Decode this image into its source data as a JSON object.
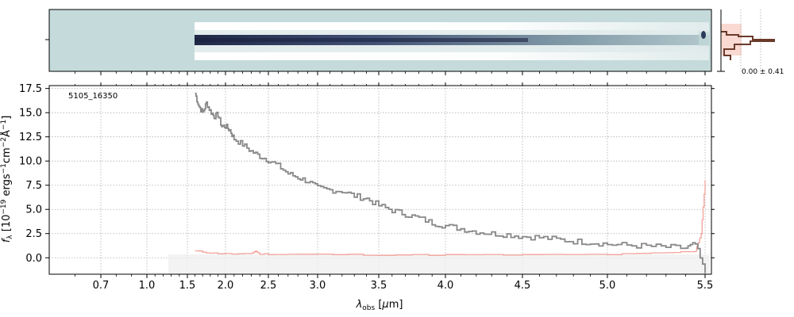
{
  "chart_data": [
    {
      "type": "heatmap",
      "panel": "2d-spectrum",
      "description_visible": "Dispersed 2D spectrum cutout; trace visible from about 1.6 to 5.5 µm",
      "colors": {
        "background": "#c5dada",
        "trace": "#2d3a5c",
        "bright_band": "#ffffff"
      }
    },
    {
      "type": "line",
      "panel": "profile",
      "annotation": "0.00 ± 0.41",
      "colors": {
        "profile": "#6b3a2a",
        "fill": "#f7c9bd"
      }
    },
    {
      "type": "line",
      "panel": "1d-spectrum",
      "label": "5105_16350",
      "xlabel": "λ_obs [μm]",
      "ylabel": "f_λ [10⁻¹⁹ ergs⁻¹cm⁻²Å⁻¹]",
      "ylim": [
        -1.7,
        17.8
      ],
      "x_ticks": [
        "0.7",
        "1.0",
        "1.5",
        "2.0",
        "2.5",
        "3.0",
        "3.5",
        "4.0",
        "4.5",
        "5.0",
        "5.5"
      ],
      "y_ticks": [
        "0.0",
        "2.5",
        "5.0",
        "7.5",
        "10.0",
        "12.5",
        "15.0",
        "17.5"
      ],
      "grid": true,
      "series": [
        {
          "color": "#888888",
          "x": [
            1.6,
            1.65,
            1.7,
            1.75,
            1.8,
            1.85,
            1.9,
            1.95,
            2.0,
            2.05,
            2.1,
            2.2,
            2.3,
            2.4,
            2.5,
            2.6,
            2.7,
            2.8,
            2.9,
            3.0,
            3.1,
            3.2,
            3.3,
            3.4,
            3.5,
            3.6,
            3.7,
            3.8,
            3.9,
            4.0,
            4.1,
            4.2,
            4.3,
            4.4,
            4.5,
            4.6,
            4.7,
            4.8,
            4.9,
            5.0,
            5.1,
            5.2,
            5.3,
            5.4,
            5.45,
            5.5
          ],
          "y": [
            17.0,
            15.7,
            15.0,
            16.0,
            15.2,
            14.6,
            14.8,
            13.6,
            13.6,
            13.2,
            12.3,
            11.7,
            11.0,
            10.5,
            10.1,
            9.5,
            8.7,
            8.3,
            7.9,
            7.2,
            7.0,
            6.9,
            6.4,
            6.1,
            5.4,
            4.9,
            4.5,
            4.1,
            3.6,
            3.3,
            3.0,
            2.7,
            2.5,
            2.4,
            2.2,
            2.1,
            1.9,
            1.7,
            1.6,
            1.4,
            1.3,
            1.2,
            1.1,
            1.0,
            1.4,
            -1.6
          ]
        },
        {
          "color": "#f2a39b",
          "x": [
            1.6,
            1.8,
            2.0,
            2.3,
            2.35,
            2.4,
            2.6,
            3.0,
            3.5,
            4.0,
            4.5,
            5.0,
            5.3,
            5.45,
            5.48,
            5.5
          ],
          "y": [
            0.7,
            0.5,
            0.4,
            0.4,
            0.7,
            0.4,
            0.35,
            0.35,
            0.3,
            0.3,
            0.3,
            0.35,
            0.5,
            0.7,
            2.5,
            8.0
          ]
        }
      ]
    }
  ]
}
